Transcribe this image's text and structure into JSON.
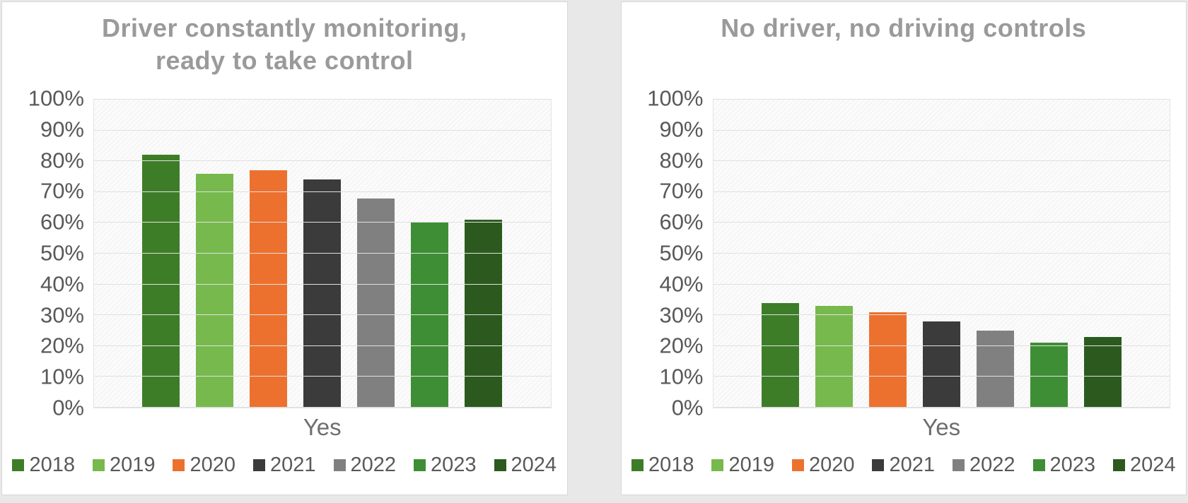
{
  "window": {
    "background": "#e8e8e8",
    "panel_background": "#ffffff",
    "panel_border": "#d8d8d8",
    "title_color": "#9a9a9a",
    "axis_text_color": "#595959",
    "gridline_color": "#e0e0e0"
  },
  "chart_data": [
    {
      "type": "bar",
      "title": "Driver constantly monitoring,\nready to take control",
      "categories": [
        "Yes"
      ],
      "series": [
        {
          "name": "2018",
          "color": "#3E7D28",
          "values": [
            82
          ]
        },
        {
          "name": "2019",
          "color": "#77B94D",
          "values": [
            76
          ]
        },
        {
          "name": "2020",
          "color": "#ED712E",
          "values": [
            77
          ]
        },
        {
          "name": "2021",
          "color": "#3B3B3B",
          "values": [
            74
          ]
        },
        {
          "name": "2022",
          "color": "#808080",
          "values": [
            68
          ]
        },
        {
          "name": "2023",
          "color": "#3E8E35",
          "values": [
            60
          ]
        },
        {
          "name": "2024",
          "color": "#2C5A1E",
          "values": [
            61
          ]
        }
      ],
      "xlabel": "Yes",
      "ylabel": "",
      "ylim": [
        0,
        100
      ],
      "ytick_step": 10,
      "ytick_suffix": "%",
      "grid": true,
      "legend_position": "bottom",
      "legend_labels": [
        "2018",
        "2019",
        "2020",
        "2021",
        "2022",
        "2023",
        "2024"
      ]
    },
    {
      "type": "bar",
      "title": "No driver, no driving controls",
      "categories": [
        "Yes"
      ],
      "series": [
        {
          "name": "2018",
          "color": "#3E7D28",
          "values": [
            34
          ]
        },
        {
          "name": "2019",
          "color": "#77B94D",
          "values": [
            33
          ]
        },
        {
          "name": "2020",
          "color": "#ED712E",
          "values": [
            31
          ]
        },
        {
          "name": "2021",
          "color": "#3B3B3B",
          "values": [
            28
          ]
        },
        {
          "name": "2022",
          "color": "#808080",
          "values": [
            25
          ]
        },
        {
          "name": "2023",
          "color": "#3E8E35",
          "values": [
            21
          ]
        },
        {
          "name": "2024",
          "color": "#2C5A1E",
          "values": [
            23
          ]
        }
      ],
      "xlabel": "Yes",
      "ylabel": "",
      "ylim": [
        0,
        100
      ],
      "ytick_step": 10,
      "ytick_suffix": "%",
      "grid": true,
      "legend_position": "bottom",
      "legend_labels": [
        "2018",
        "2019",
        "2020",
        "2021",
        "2022",
        "2023",
        "2024"
      ]
    }
  ]
}
